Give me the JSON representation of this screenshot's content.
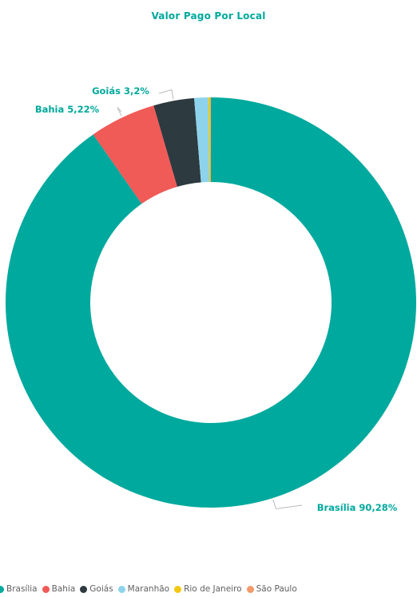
{
  "chart_data": {
    "type": "pie",
    "title": "Valor Pago Por Local",
    "hole": true,
    "legend": "bottom",
    "categories": [
      "Brasília",
      "Bahia",
      "Goiás",
      "Maranhão",
      "Rio de Janeiro",
      "São Paulo"
    ],
    "values": [
      90.28,
      5.22,
      3.2,
      1.1,
      0.15,
      0.05
    ],
    "colors": [
      "#00a99d",
      "#f05a57",
      "#2d3a40",
      "#8dd3ec",
      "#f2c811",
      "#f39a6b"
    ],
    "data_labels": [
      {
        "category": "Bahia",
        "text": "Bahia 5,22%"
      },
      {
        "category": "Goiás",
        "text": "Goiás 3,2%"
      },
      {
        "category": "Brasília",
        "text": "Brasília 90,28%"
      }
    ]
  }
}
